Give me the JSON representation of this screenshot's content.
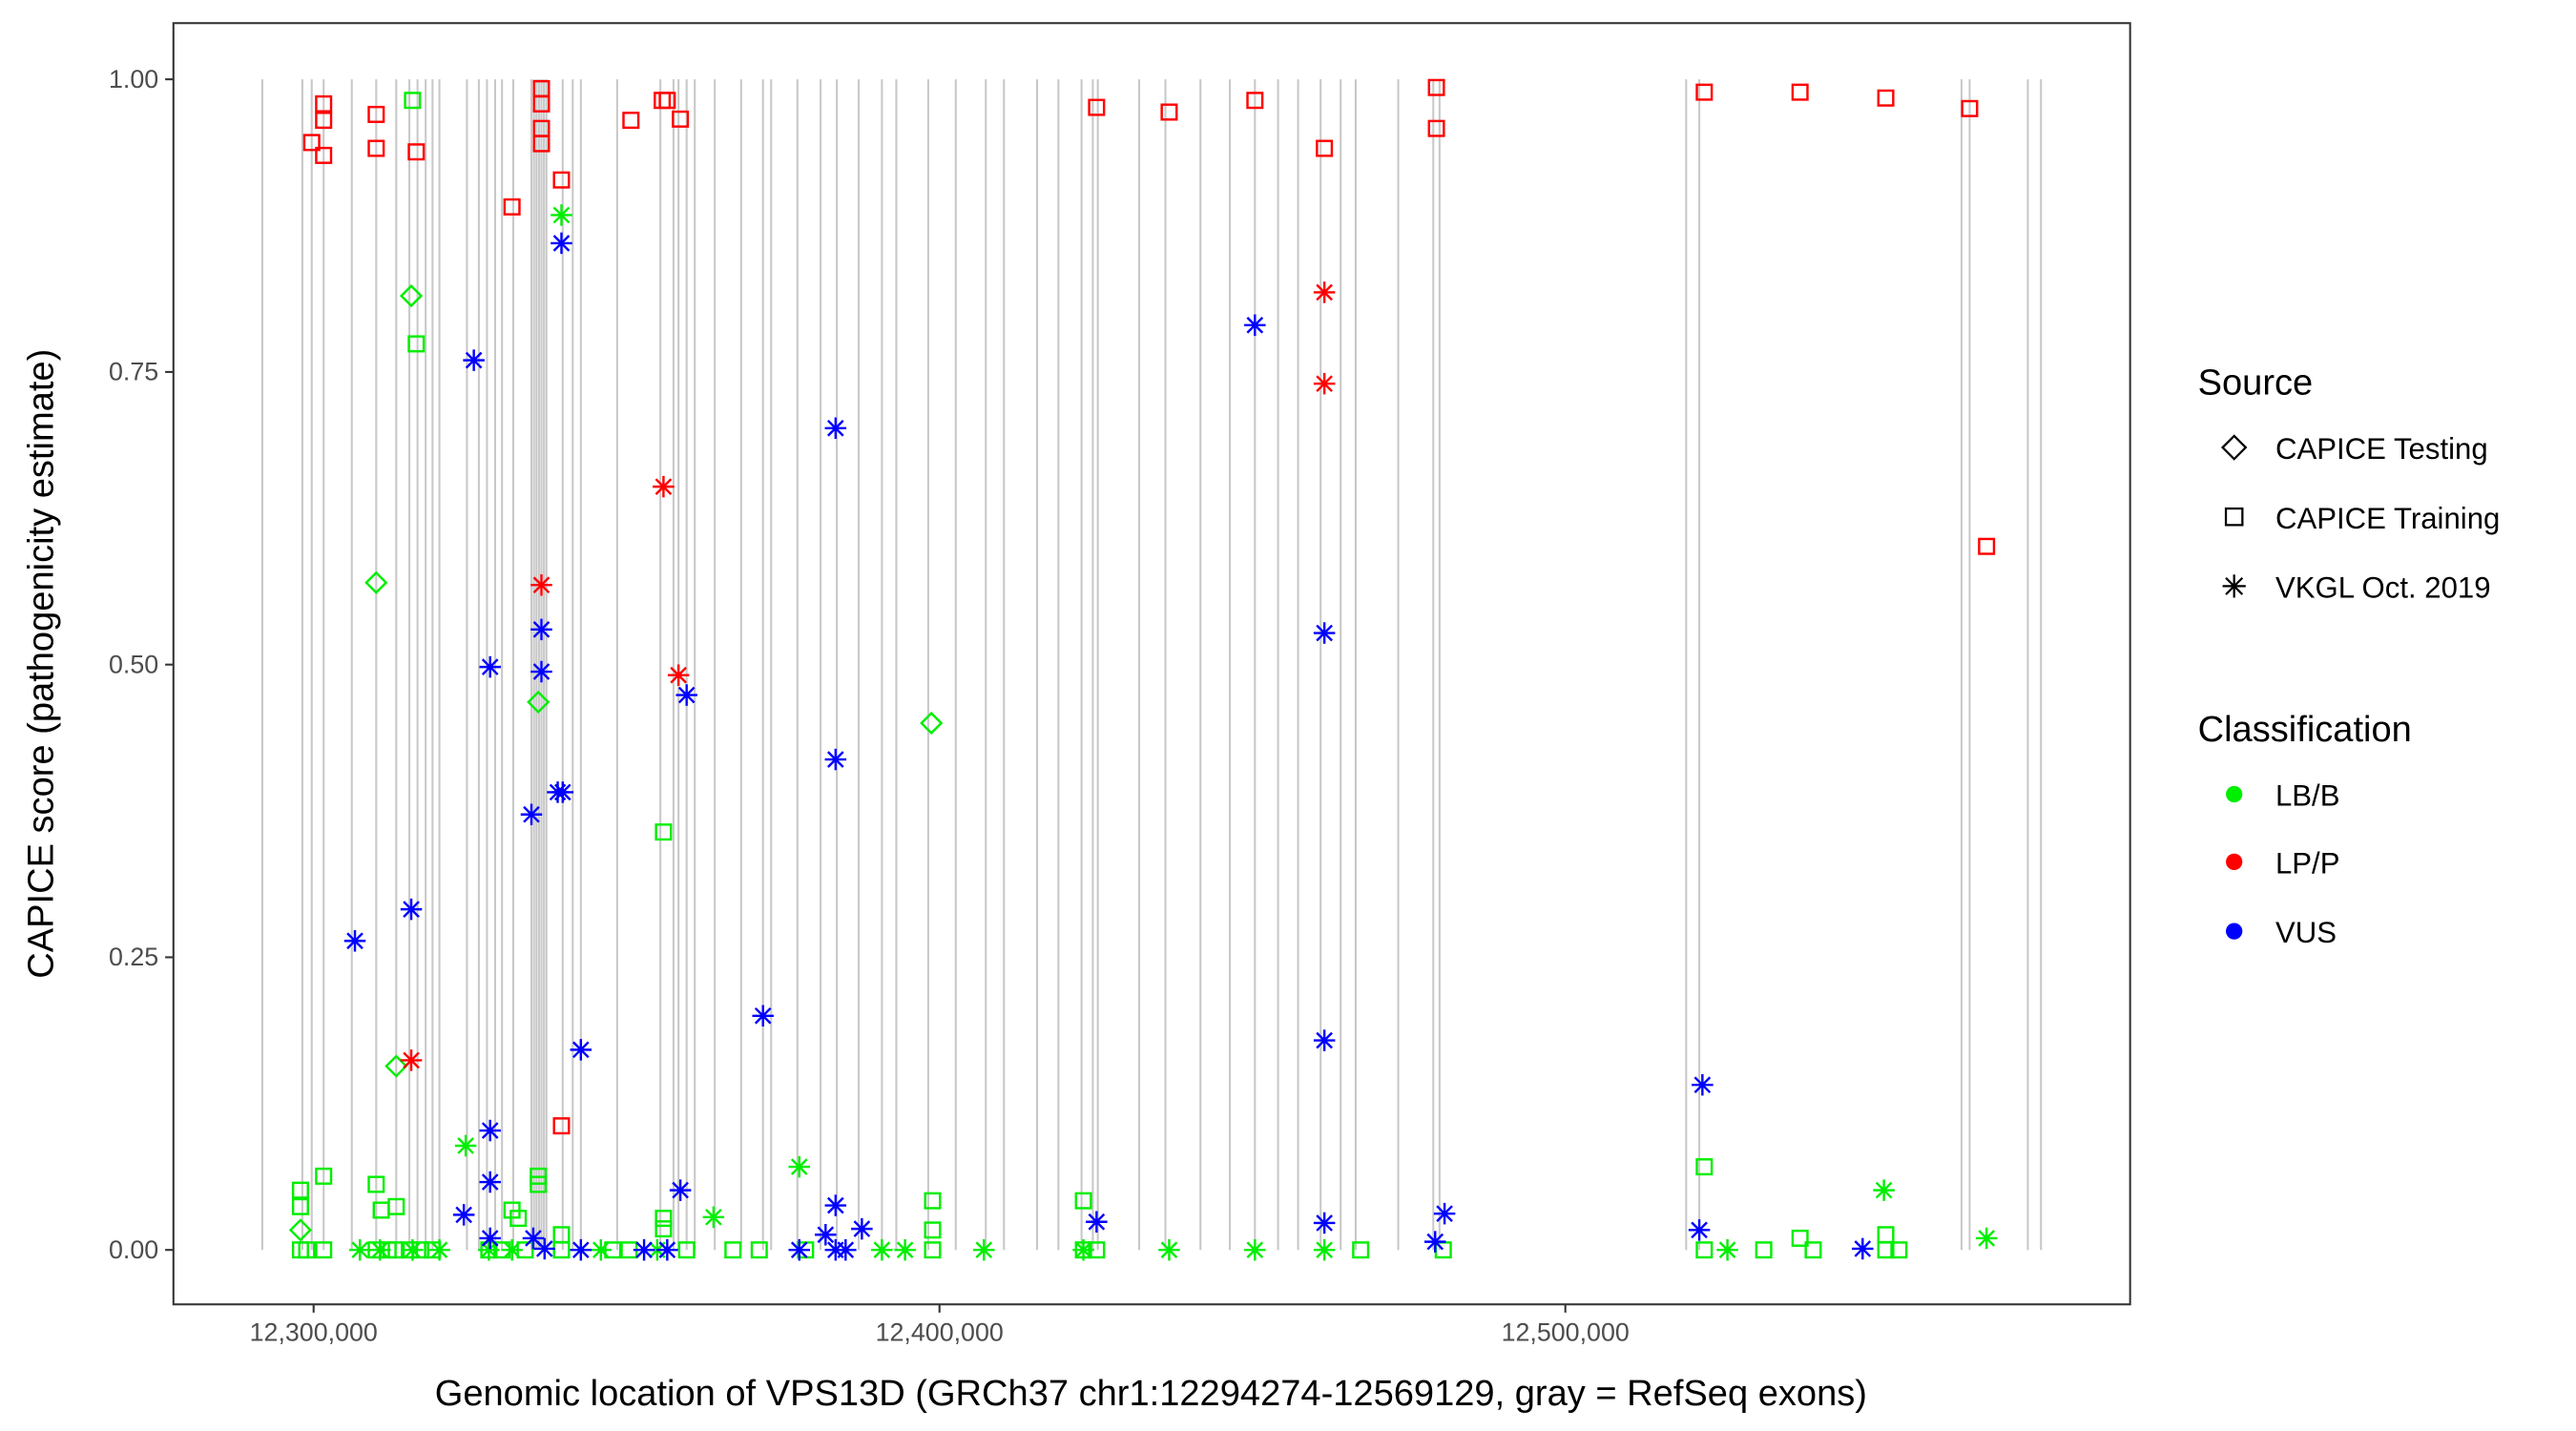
{
  "chart_data": {
    "type": "scatter",
    "title": "",
    "xlabel": "Genomic location of VPS13D (GRCh37 chr1:12294274-12569129, gray = RefSeq exons)",
    "ylabel": "CAPICE score (pathogenicity estimate)",
    "xlim": [
      12277600,
      12590240
    ],
    "ylim": [
      -0.0465,
      1.048
    ],
    "x_ticks": [
      12300000,
      12400000,
      12500000
    ],
    "x_tick_labels": [
      "12,300,000",
      "12,400,000",
      "12,500,000"
    ],
    "y_ticks": [
      0,
      0.25,
      0.5,
      0.75,
      1.0
    ],
    "y_tick_labels": [
      "0.00",
      "0.25",
      "0.50",
      "0.75",
      "1.00"
    ],
    "grid": false,
    "legend_position": "right",
    "legend": {
      "source_title": "Source",
      "sources": [
        {
          "key": "T",
          "label": "CAPICE Testing",
          "shape": "diamond"
        },
        {
          "key": "R",
          "label": "CAPICE Training",
          "shape": "square"
        },
        {
          "key": "V",
          "label": "VKGL Oct. 2019",
          "shape": "asterisk"
        }
      ],
      "class_title": "Classification",
      "classes": [
        {
          "key": "B",
          "label": "LB/B",
          "color": "#00ee00"
        },
        {
          "key": "P",
          "label": "LP/P",
          "color": "#ff0000"
        },
        {
          "key": "U",
          "label": "VUS",
          "color": "#0000ff"
        }
      ]
    },
    "exons": [
      12291800,
      12298200,
      12299700,
      12301600,
      12306100,
      12310000,
      12313200,
      12315300,
      12316600,
      12317900,
      12319000,
      12320100,
      12324500,
      12326400,
      12327700,
      12329000,
      12330100,
      12331900,
      12334800,
      12335200,
      12335600,
      12336000,
      12336400,
      12336800,
      12337200,
      12339800,
      12341400,
      12342700,
      12348500,
      12355400,
      12357500,
      12358300,
      12359600,
      12360900,
      12364100,
      12368300,
      12371800,
      12373100,
      12377300,
      12381000,
      12383600,
      12387100,
      12390800,
      12393100,
      12398200,
      12402600,
      12407400,
      12410300,
      12415600,
      12419000,
      12422700,
      12424500,
      12425300,
      12431900,
      12436100,
      12441700,
      12446400,
      12450400,
      12454100,
      12457300,
      12460900,
      12464100,
      12466500,
      12473300,
      12478900,
      12479900,
      12519300,
      12521400,
      12563300,
      12564600,
      12573900,
      12576000
    ],
    "points": [
      [
        12297900,
        0.051,
        "R",
        "B"
      ],
      [
        12297900,
        0.037,
        "R",
        "B"
      ],
      [
        12301600,
        0.063,
        "R",
        "B"
      ],
      [
        12310000,
        0.056,
        "R",
        "B"
      ],
      [
        12313200,
        0.037,
        "R",
        "B"
      ],
      [
        12310800,
        0.034,
        "R",
        "B"
      ],
      [
        12335900,
        0.063,
        "R",
        "B"
      ],
      [
        12335900,
        0.056,
        "R",
        "B"
      ],
      [
        12331700,
        0.034,
        "R",
        "B"
      ],
      [
        12332700,
        0.027,
        "R",
        "B"
      ],
      [
        12339600,
        0.013,
        "R",
        "B"
      ],
      [
        12355900,
        0.027,
        "R",
        "B"
      ],
      [
        12355900,
        0.018,
        "R",
        "B"
      ],
      [
        12398900,
        0.042,
        "R",
        "B"
      ],
      [
        12398900,
        0.017,
        "R",
        "B"
      ],
      [
        12423000,
        0.042,
        "R",
        "B"
      ],
      [
        12522200,
        0.071,
        "R",
        "B"
      ],
      [
        12537500,
        0.01,
        "R",
        "B"
      ],
      [
        12551200,
        0.013,
        "R",
        "B"
      ],
      [
        12297900,
        0,
        "R",
        "B"
      ],
      [
        12298900,
        0,
        "R",
        "B"
      ],
      [
        12301600,
        0,
        "R",
        "B"
      ],
      [
        12310000,
        0,
        "R",
        "B"
      ],
      [
        12311900,
        0,
        "R",
        "B"
      ],
      [
        12313200,
        0,
        "R",
        "B"
      ],
      [
        12315300,
        0,
        "R",
        "B"
      ],
      [
        12317100,
        0,
        "R",
        "B"
      ],
      [
        12319000,
        0,
        "R",
        "B"
      ],
      [
        12328000,
        0,
        "R",
        "B"
      ],
      [
        12330100,
        0,
        "R",
        "B"
      ],
      [
        12333800,
        0,
        "R",
        "B"
      ],
      [
        12339600,
        0,
        "R",
        "B"
      ],
      [
        12347800,
        0,
        "R",
        "B"
      ],
      [
        12350400,
        0,
        "R",
        "B"
      ],
      [
        12359600,
        0,
        "R",
        "B"
      ],
      [
        12367000,
        0,
        "R",
        "B"
      ],
      [
        12371200,
        0,
        "R",
        "B"
      ],
      [
        12378600,
        0,
        "R",
        "B"
      ],
      [
        12398900,
        0,
        "R",
        "B"
      ],
      [
        12423000,
        0,
        "R",
        "B"
      ],
      [
        12425100,
        0,
        "R",
        "B"
      ],
      [
        12467300,
        0,
        "R",
        "B"
      ],
      [
        12480500,
        0,
        "R",
        "B"
      ],
      [
        12522200,
        0,
        "R",
        "B"
      ],
      [
        12531700,
        0,
        "R",
        "B"
      ],
      [
        12539600,
        0,
        "R",
        "B"
      ],
      [
        12551200,
        0,
        "R",
        "B"
      ],
      [
        12553300,
        0,
        "R",
        "B"
      ],
      [
        12315800,
        0.982,
        "R",
        "B"
      ],
      [
        12316400,
        0.774,
        "R",
        "B"
      ],
      [
        12355900,
        0.357,
        "R",
        "B"
      ],
      [
        12299700,
        0.946,
        "R",
        "P"
      ],
      [
        12301600,
        0.979,
        "R",
        "P"
      ],
      [
        12301600,
        0.965,
        "R",
        "P"
      ],
      [
        12301600,
        0.935,
        "R",
        "P"
      ],
      [
        12310000,
        0.97,
        "R",
        "P"
      ],
      [
        12310000,
        0.941,
        "R",
        "P"
      ],
      [
        12316400,
        0.938,
        "R",
        "P"
      ],
      [
        12331700,
        0.891,
        "R",
        "P"
      ],
      [
        12336400,
        0.992,
        "R",
        "P"
      ],
      [
        12336400,
        0.979,
        "R",
        "P"
      ],
      [
        12336400,
        0.958,
        "R",
        "P"
      ],
      [
        12336400,
        0.945,
        "R",
        "P"
      ],
      [
        12339600,
        0.914,
        "R",
        "P"
      ],
      [
        12350700,
        0.965,
        "R",
        "P"
      ],
      [
        12355700,
        0.982,
        "R",
        "P"
      ],
      [
        12356500,
        0.982,
        "R",
        "P"
      ],
      [
        12358600,
        0.966,
        "R",
        "P"
      ],
      [
        12425100,
        0.976,
        "R",
        "P"
      ],
      [
        12436700,
        0.972,
        "R",
        "P"
      ],
      [
        12450400,
        0.982,
        "R",
        "P"
      ],
      [
        12461500,
        0.941,
        "R",
        "P"
      ],
      [
        12479400,
        0.993,
        "R",
        "P"
      ],
      [
        12479400,
        0.958,
        "R",
        "P"
      ],
      [
        12522200,
        0.989,
        "R",
        "P"
      ],
      [
        12537500,
        0.989,
        "R",
        "P"
      ],
      [
        12551200,
        0.984,
        "R",
        "P"
      ],
      [
        12564600,
        0.975,
        "R",
        "P"
      ],
      [
        12567300,
        0.601,
        "R",
        "P"
      ],
      [
        12339600,
        0.106,
        "R",
        "P"
      ],
      [
        12315600,
        0.815,
        "T",
        "B"
      ],
      [
        12310000,
        0.57,
        "T",
        "B"
      ],
      [
        12335900,
        0.468,
        "T",
        "B"
      ],
      [
        12398700,
        0.45,
        "T",
        "B"
      ],
      [
        12313200,
        0.157,
        "T",
        "B"
      ],
      [
        12297900,
        0.017,
        "T",
        "B"
      ],
      [
        12339600,
        0.884,
        "V",
        "B"
      ],
      [
        12324300,
        0.089,
        "V",
        "B"
      ],
      [
        12377600,
        0.071,
        "V",
        "B"
      ],
      [
        12363900,
        0.028,
        "V",
        "B"
      ],
      [
        12550900,
        0.051,
        "V",
        "B"
      ],
      [
        12567300,
        0.01,
        "V",
        "B"
      ],
      [
        12307400,
        0,
        "V",
        "B"
      ],
      [
        12310600,
        0,
        "V",
        "B"
      ],
      [
        12315800,
        0,
        "V",
        "B"
      ],
      [
        12320100,
        0,
        "V",
        "B"
      ],
      [
        12328000,
        0,
        "V",
        "B"
      ],
      [
        12331700,
        0,
        "V",
        "B"
      ],
      [
        12345900,
        0,
        "V",
        "B"
      ],
      [
        12354900,
        0,
        "V",
        "B"
      ],
      [
        12390800,
        0,
        "V",
        "B"
      ],
      [
        12394500,
        0,
        "V",
        "B"
      ],
      [
        12407100,
        0,
        "V",
        "B"
      ],
      [
        12423000,
        0,
        "V",
        "B"
      ],
      [
        12436700,
        0,
        "V",
        "B"
      ],
      [
        12450400,
        0,
        "V",
        "B"
      ],
      [
        12461500,
        0,
        "V",
        "B"
      ],
      [
        12525900,
        0,
        "V",
        "B"
      ],
      [
        12315600,
        0.162,
        "V",
        "P"
      ],
      [
        12336400,
        0.568,
        "V",
        "P"
      ],
      [
        12355900,
        0.652,
        "V",
        "P"
      ],
      [
        12358300,
        0.491,
        "V",
        "P"
      ],
      [
        12461500,
        0.818,
        "V",
        "P"
      ],
      [
        12461500,
        0.74,
        "V",
        "P"
      ],
      [
        12339600,
        0.86,
        "V",
        "U"
      ],
      [
        12325600,
        0.76,
        "V",
        "U"
      ],
      [
        12383400,
        0.702,
        "V",
        "U"
      ],
      [
        12450400,
        0.79,
        "V",
        "U"
      ],
      [
        12336400,
        0.53,
        "V",
        "U"
      ],
      [
        12328200,
        0.498,
        "V",
        "U"
      ],
      [
        12336400,
        0.494,
        "V",
        "U"
      ],
      [
        12359600,
        0.474,
        "V",
        "U"
      ],
      [
        12461500,
        0.527,
        "V",
        "U"
      ],
      [
        12383400,
        0.419,
        "V",
        "U"
      ],
      [
        12334800,
        0.372,
        "V",
        "U"
      ],
      [
        12339000,
        0.391,
        "V",
        "U"
      ],
      [
        12339800,
        0.391,
        "V",
        "U"
      ],
      [
        12315600,
        0.291,
        "V",
        "U"
      ],
      [
        12306600,
        0.264,
        "V",
        "U"
      ],
      [
        12371800,
        0.2,
        "V",
        "U"
      ],
      [
        12342700,
        0.171,
        "V",
        "U"
      ],
      [
        12461500,
        0.179,
        "V",
        "U"
      ],
      [
        12521900,
        0.141,
        "V",
        "U"
      ],
      [
        12328200,
        0.102,
        "V",
        "U"
      ],
      [
        12328200,
        0.058,
        "V",
        "U"
      ],
      [
        12324000,
        0.03,
        "V",
        "U"
      ],
      [
        12358600,
        0.051,
        "V",
        "U"
      ],
      [
        12383400,
        0.038,
        "V",
        "U"
      ],
      [
        12387600,
        0.018,
        "V",
        "U"
      ],
      [
        12425100,
        0.024,
        "V",
        "U"
      ],
      [
        12461500,
        0.023,
        "V",
        "U"
      ],
      [
        12480700,
        0.031,
        "V",
        "U"
      ],
      [
        12479200,
        0.007,
        "V",
        "U"
      ],
      [
        12521400,
        0.017,
        "V",
        "U"
      ],
      [
        12547500,
        0.001,
        "V",
        "U"
      ],
      [
        12328200,
        0.01,
        "V",
        "U"
      ],
      [
        12335100,
        0.01,
        "V",
        "U"
      ],
      [
        12336900,
        0.001,
        "V",
        "U"
      ],
      [
        12342700,
        0,
        "V",
        "U"
      ],
      [
        12352800,
        0,
        "V",
        "U"
      ],
      [
        12356500,
        0,
        "V",
        "U"
      ],
      [
        12377600,
        0,
        "V",
        "U"
      ],
      [
        12381800,
        0.013,
        "V",
        "U"
      ],
      [
        12383400,
        0,
        "V",
        "U"
      ],
      [
        12385000,
        0,
        "V",
        "U"
      ]
    ]
  }
}
